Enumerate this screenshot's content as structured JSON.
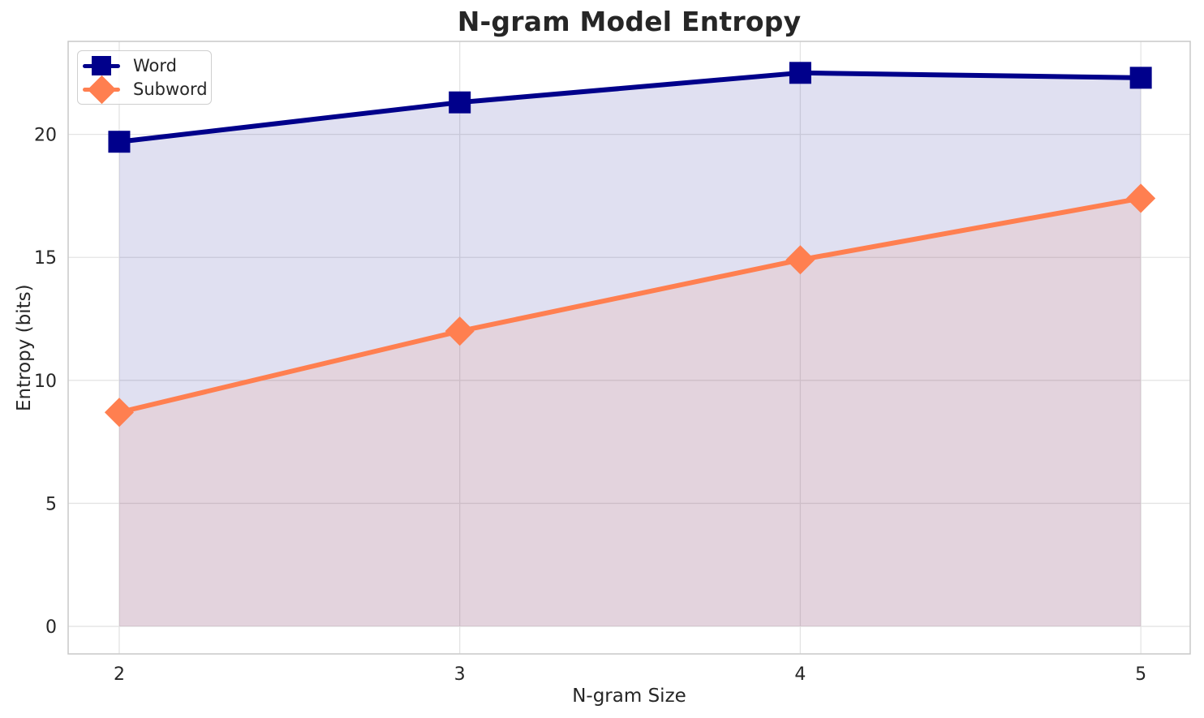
{
  "figure": {
    "background": "#ffffff",
    "text_color": "#262626",
    "grid_color": "#e4e4e4",
    "spine_color": "#c9c9c9"
  },
  "chart_data": {
    "type": "line",
    "title": "N-gram Model Entropy",
    "xlabel": "N-gram Size",
    "ylabel": "Entropy (bits)",
    "x": [
      2,
      3,
      4,
      5
    ],
    "x_tick_labels": [
      "2",
      "3",
      "4",
      "5"
    ],
    "y_ticks": [
      0,
      5,
      10,
      15,
      20
    ],
    "y_tick_labels": [
      "0",
      "5",
      "10",
      "15",
      "20"
    ],
    "xlim": [
      1.85,
      5.145
    ],
    "ylim": [
      -1.12,
      23.78
    ],
    "grid": true,
    "legend_position": "upper-left",
    "baseline": 0,
    "area_fill": true,
    "series": [
      {
        "name": "Word",
        "color": "#00008b",
        "marker": "square",
        "fill_alpha": 0.12,
        "values": [
          19.7,
          21.3,
          22.5,
          22.3
        ]
      },
      {
        "name": "Subword",
        "color": "#ff7f50",
        "marker": "diamond",
        "fill_alpha": 0.12,
        "values": [
          8.7,
          12.0,
          14.9,
          17.4
        ]
      }
    ]
  }
}
